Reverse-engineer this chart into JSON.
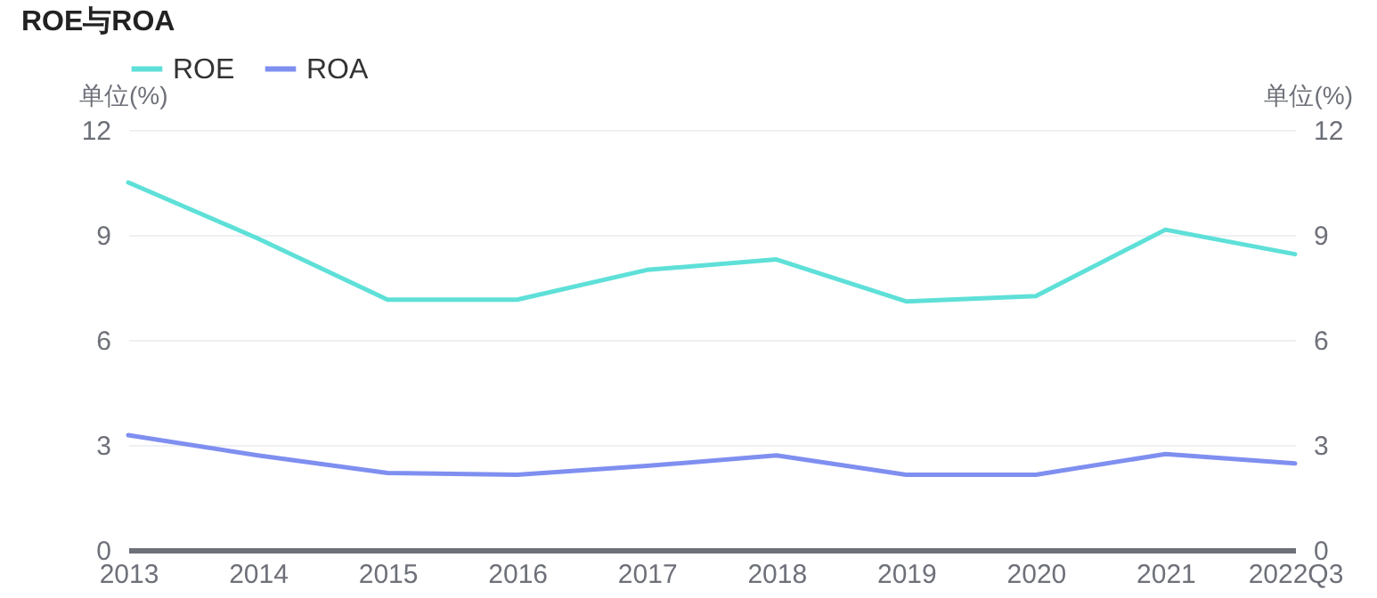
{
  "chart_data": {
    "type": "line",
    "title": "ROE与ROA",
    "ylabel": "单位(%)",
    "y2label": "单位(%)",
    "categories": [
      "2013",
      "2014",
      "2015",
      "2016",
      "2017",
      "2018",
      "2019",
      "2020",
      "2021",
      "2022Q3"
    ],
    "series": [
      {
        "name": "ROE",
        "color": "#5ee0d8",
        "values": [
          10.5,
          8.9,
          7.15,
          7.15,
          8.0,
          8.3,
          7.1,
          7.25,
          9.15,
          8.45
        ]
      },
      {
        "name": "ROA",
        "color": "#7f8ff0",
        "axis": "y2",
        "values": [
          3.28,
          2.7,
          2.2,
          2.15,
          2.4,
          2.7,
          2.15,
          2.15,
          2.74,
          2.47
        ]
      }
    ],
    "ylim": [
      0,
      12
    ],
    "yticks": [
      0,
      3,
      6,
      9,
      12
    ],
    "y2lim": [
      0,
      12
    ],
    "y2ticks": [
      0,
      3,
      6,
      9,
      12
    ],
    "grid": "y",
    "legend": "top left",
    "marker": "none",
    "line_style": "solid"
  }
}
